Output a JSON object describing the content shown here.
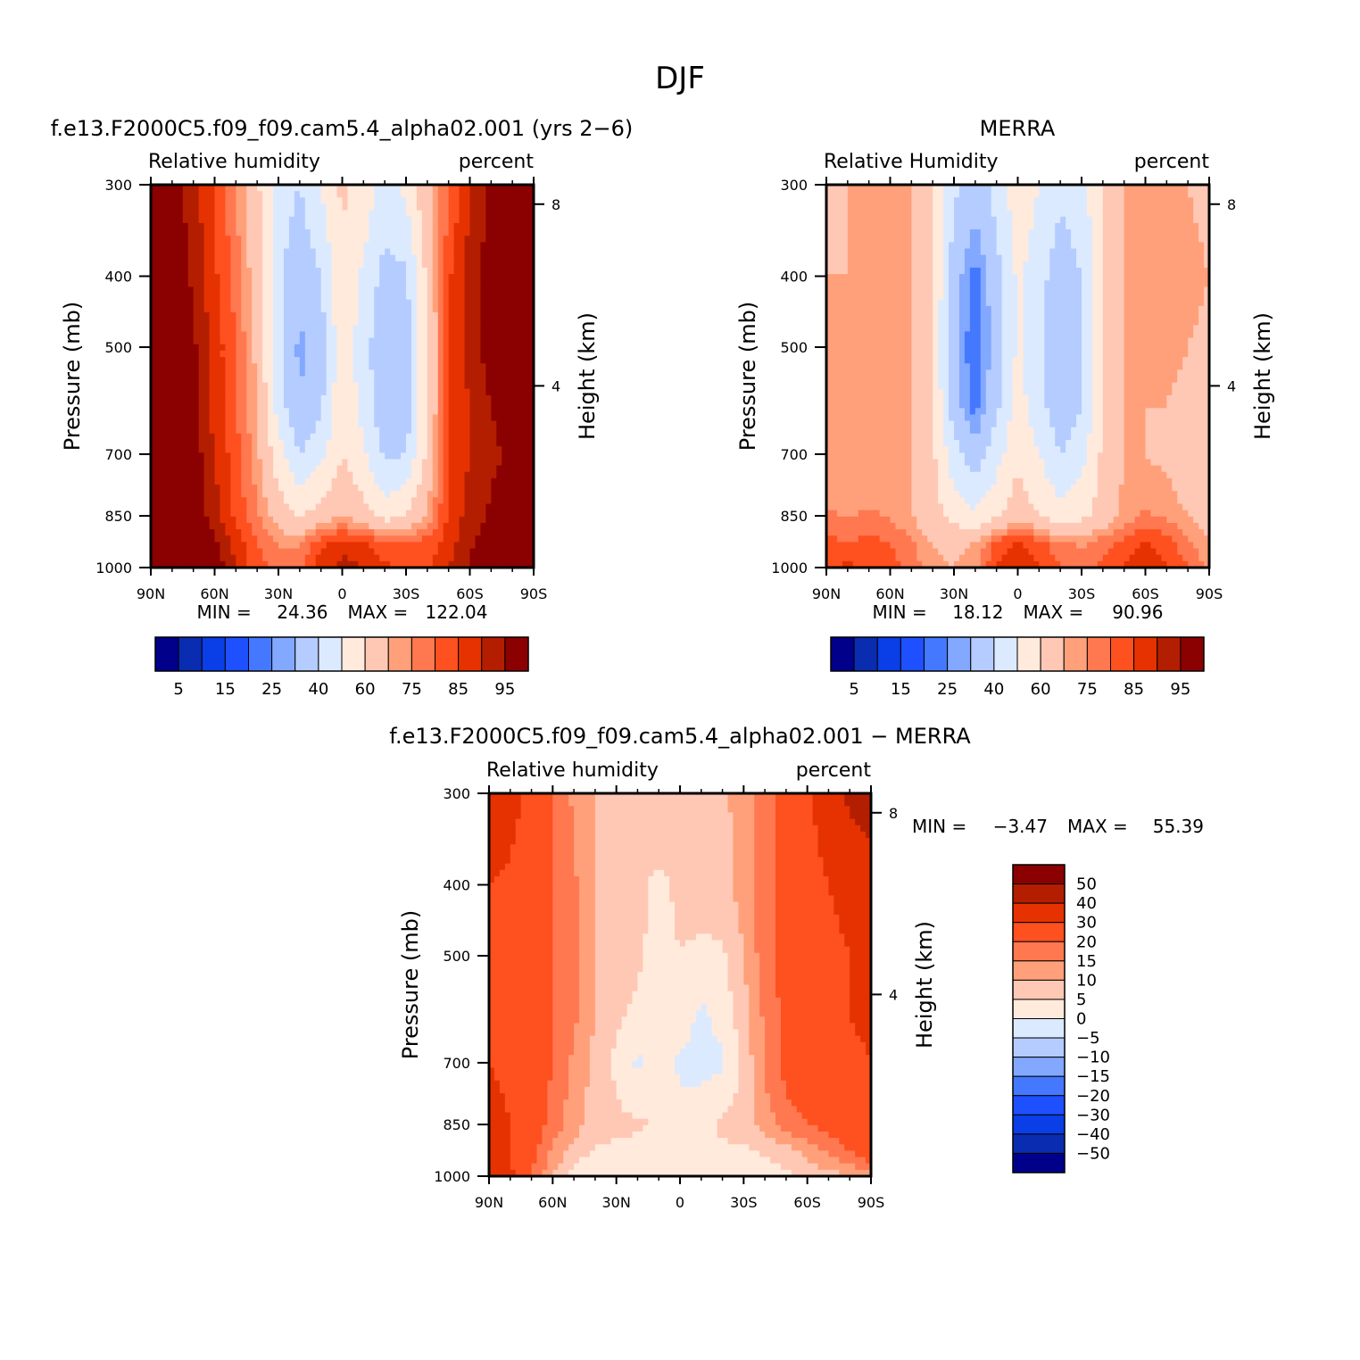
{
  "figure": {
    "title": "DJF"
  },
  "colormaps": {
    "rh": [
      "#00008b",
      "#0a2cb0",
      "#0a3ee6",
      "#1e50ff",
      "#4478ff",
      "#82a8ff",
      "#b4ccff",
      "#dceaff",
      "#ffeadc",
      "#ffc8b4",
      "#ffa07a",
      "#ff7850",
      "#ff5020",
      "#e63200",
      "#b41e00",
      "#8b0000"
    ],
    "diff": [
      "#8b0000",
      "#b41e00",
      "#e63200",
      "#ff5020",
      "#ff7850",
      "#ffa07a",
      "#ffc8b4",
      "#ffeadc",
      "#dceaff",
      "#b4ccff",
      "#82a8ff",
      "#4478ff",
      "#1e50ff",
      "#0a3ee6",
      "#0a2cb0",
      "#00008b"
    ]
  },
  "chart_data": [
    {
      "id": "model",
      "type": "heatmap",
      "title": "f.e13.F2000C5.f09_f09.cam5.4_alpha02.001 (yrs 2−6)",
      "left_label": "Relative humidity",
      "right_label": "percent",
      "xlabel": "",
      "ylabel": "Pressure (mb)",
      "y2label": "Height (km)",
      "x_ticks": [
        "90N",
        "60N",
        "30N",
        "0",
        "30S",
        "60S",
        "90S"
      ],
      "x_range": [
        90,
        -90
      ],
      "y_ticks": [
        300,
        400,
        500,
        700,
        850,
        1000
      ],
      "y_range": [
        1000,
        300
      ],
      "y_scale": "log",
      "y2_ticks": [
        "8",
        "4"
      ],
      "min_label": "MIN =",
      "min": "24.36",
      "max_label": "MAX =",
      "max": "122.04",
      "colorbar": {
        "orientation": "horizontal",
        "labels": [
          "5",
          "15",
          "25",
          "40",
          "60",
          "75",
          "85",
          "95"
        ]
      },
      "lat": [
        90,
        80,
        70,
        60,
        50,
        40,
        30,
        20,
        10,
        0,
        -10,
        -20,
        -30,
        -40,
        -50,
        -60,
        -70,
        -80,
        -90
      ],
      "pressure": [
        300,
        400,
        500,
        600,
        700,
        850,
        925,
        1000
      ],
      "values": [
        [
          98,
          98,
          92,
          85,
          75,
          62,
          45,
          40,
          50,
          62,
          56,
          46,
          52,
          68,
          80,
          90,
          96,
          100,
          102
        ],
        [
          100,
          100,
          94,
          86,
          78,
          66,
          42,
          32,
          40,
          58,
          48,
          36,
          38,
          62,
          84,
          92,
          98,
          102,
          104
        ],
        [
          100,
          100,
          96,
          88,
          80,
          68,
          42,
          28,
          35,
          58,
          44,
          32,
          34,
          60,
          86,
          92,
          98,
          100,
          102
        ],
        [
          100,
          100,
          96,
          88,
          80,
          70,
          46,
          30,
          38,
          58,
          46,
          32,
          34,
          60,
          86,
          90,
          95,
          98,
          100
        ],
        [
          102,
          102,
          98,
          90,
          82,
          72,
          54,
          40,
          48,
          60,
          52,
          38,
          40,
          62,
          86,
          90,
          94,
          96,
          98
        ],
        [
          110,
          108,
          100,
          92,
          84,
          76,
          66,
          60,
          64,
          70,
          64,
          56,
          60,
          72,
          86,
          92,
          96,
          98,
          100
        ],
        [
          118,
          115,
          105,
          96,
          88,
          80,
          74,
          74,
          84,
          88,
          86,
          82,
          80,
          82,
          88,
          94,
          98,
          100,
          100
        ],
        [
          122,
          120,
          108,
          100,
          90,
          82,
          78,
          78,
          88,
          92,
          90,
          86,
          84,
          84,
          90,
          96,
          98,
          100,
          100
        ]
      ]
    },
    {
      "id": "obs",
      "type": "heatmap",
      "title": "MERRA",
      "left_label": "Relative Humidity",
      "right_label": "percent",
      "xlabel": "",
      "ylabel": "Pressure (mb)",
      "y2label": "Height (km)",
      "x_ticks": [
        "90N",
        "60N",
        "30N",
        "0",
        "30S",
        "60S",
        "90S"
      ],
      "x_range": [
        90,
        -90
      ],
      "y_ticks": [
        300,
        400,
        500,
        700,
        850,
        1000
      ],
      "y_range": [
        1000,
        300
      ],
      "y_scale": "log",
      "y2_ticks": [
        "8",
        "4"
      ],
      "min_label": "MIN =",
      "min": "18.12",
      "max_label": "MAX =",
      "max": "90.96",
      "colorbar": {
        "orientation": "horizontal",
        "labels": [
          "5",
          "15",
          "25",
          "40",
          "60",
          "75",
          "85",
          "95"
        ]
      },
      "lat": [
        90,
        80,
        70,
        60,
        50,
        40,
        30,
        20,
        10,
        0,
        -10,
        -20,
        -30,
        -40,
        -50,
        -60,
        -70,
        -80,
        -90
      ],
      "pressure": [
        300,
        400,
        500,
        600,
        700,
        850,
        925,
        1000
      ],
      "values": [
        [
          62,
          70,
          70,
          70,
          70,
          60,
          42,
          34,
          44,
          56,
          50,
          42,
          46,
          60,
          70,
          72,
          72,
          70,
          68
        ],
        [
          70,
          70,
          70,
          70,
          70,
          60,
          34,
          22,
          36,
          52,
          44,
          34,
          40,
          60,
          70,
          72,
          74,
          72,
          70
        ],
        [
          70,
          70,
          70,
          70,
          70,
          60,
          32,
          20,
          34,
          52,
          42,
          30,
          38,
          60,
          70,
          72,
          72,
          70,
          68
        ],
        [
          70,
          70,
          70,
          70,
          70,
          60,
          34,
          22,
          38,
          54,
          44,
          32,
          40,
          60,
          70,
          70,
          70,
          68,
          66
        ],
        [
          70,
          70,
          70,
          70,
          70,
          62,
          44,
          34,
          46,
          58,
          50,
          40,
          46,
          62,
          70,
          70,
          68,
          64,
          62
        ],
        [
          76,
          74,
          76,
          74,
          70,
          64,
          56,
          52,
          58,
          66,
          60,
          54,
          58,
          64,
          72,
          76,
          74,
          70,
          66
        ],
        [
          82,
          80,
          82,
          80,
          76,
          70,
          68,
          70,
          82,
          86,
          82,
          76,
          74,
          78,
          82,
          86,
          82,
          76,
          70
        ],
        [
          84,
          86,
          84,
          82,
          78,
          72,
          70,
          74,
          86,
          90,
          86,
          80,
          78,
          82,
          86,
          90,
          86,
          80,
          74
        ]
      ]
    },
    {
      "id": "diff",
      "type": "heatmap",
      "title": "f.e13.F2000C5.f09_f09.cam5.4_alpha02.001 − MERRA",
      "left_label": "Relative humidity",
      "right_label": "percent",
      "xlabel": "",
      "ylabel": "Pressure (mb)",
      "y2label": "Height (km)",
      "x_ticks": [
        "90N",
        "60N",
        "30N",
        "0",
        "30S",
        "60S",
        "90S"
      ],
      "x_range": [
        90,
        -90
      ],
      "y_ticks": [
        300,
        400,
        500,
        700,
        850,
        1000
      ],
      "y_range": [
        1000,
        300
      ],
      "y_scale": "log",
      "y2_ticks": [
        "8",
        "4"
      ],
      "min_label": "MIN =",
      "min": "−3.47",
      "max_label": "MAX =",
      "max": "55.39",
      "colorbar": {
        "orientation": "vertical",
        "labels": [
          "50",
          "40",
          "30",
          "20",
          "15",
          "10",
          "5",
          "0",
          "−5",
          "−10",
          "−15",
          "−20",
          "−30",
          "−40",
          "−50"
        ]
      },
      "lat": [
        90,
        80,
        70,
        60,
        50,
        40,
        30,
        20,
        10,
        0,
        -10,
        -20,
        -30,
        -40,
        -50,
        -60,
        -70,
        -80,
        -90
      ],
      "pressure": [
        300,
        400,
        500,
        600,
        700,
        850,
        925,
        1000
      ],
      "values": [
        [
          36,
          34,
          26,
          20,
          14,
          10,
          6,
          7,
          8,
          6,
          8,
          9,
          12,
          18,
          22,
          28,
          36,
          42,
          46
        ],
        [
          30,
          28,
          24,
          20,
          16,
          10,
          7,
          6,
          4,
          6,
          7,
          8,
          12,
          18,
          22,
          26,
          30,
          32,
          34
        ],
        [
          30,
          28,
          24,
          20,
          16,
          10,
          8,
          6,
          3,
          5,
          4,
          4,
          10,
          18,
          22,
          26,
          28,
          30,
          34
        ],
        [
          30,
          28,
          24,
          20,
          16,
          10,
          6,
          4,
          1,
          3,
          -1,
          2,
          8,
          16,
          22,
          26,
          28,
          30,
          32
        ],
        [
          30,
          28,
          24,
          20,
          14,
          8,
          4,
          -1,
          3,
          -1,
          -2,
          -1,
          6,
          16,
          22,
          24,
          26,
          28,
          30
        ],
        [
          34,
          30,
          24,
          18,
          12,
          8,
          6,
          6,
          4,
          2,
          4,
          6,
          8,
          12,
          18,
          20,
          22,
          26,
          30
        ],
        [
          36,
          30,
          22,
          14,
          8,
          4,
          4,
          3,
          2,
          2,
          2,
          4,
          4,
          6,
          8,
          12,
          16,
          20,
          26
        ],
        [
          38,
          32,
          20,
          10,
          2,
          0,
          2,
          2,
          2,
          2,
          2,
          2,
          2,
          2,
          4,
          6,
          8,
          10,
          12
        ]
      ]
    }
  ]
}
